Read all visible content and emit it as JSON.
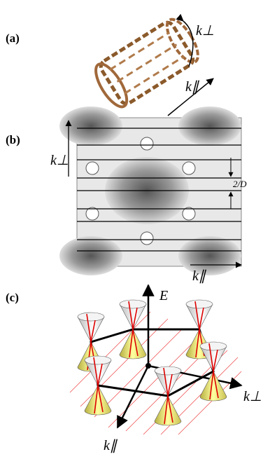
{
  "panels": [
    {
      "label": "(a)",
      "annotations": [
        "k⊥",
        "k∥"
      ]
    },
    {
      "label": "(b)",
      "annotations": [
        "k⊥",
        "2/D",
        "k∥"
      ]
    },
    {
      "label": "(c)",
      "annotations": [
        "E",
        "k⊥",
        "k∥"
      ]
    }
  ]
}
